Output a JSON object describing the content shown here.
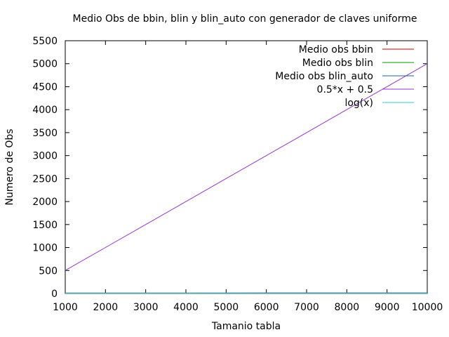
{
  "chart_data": {
    "type": "line",
    "title": "Medio Obs de bbin, blin y blin_auto con generador de claves uniforme",
    "xlabel": "Tamanio tabla",
    "ylabel": "Numero de Obs",
    "xlim": [
      1000,
      10000
    ],
    "ylim": [
      0,
      5500
    ],
    "xticks": [
      1000,
      2000,
      3000,
      4000,
      5000,
      6000,
      7000,
      8000,
      9000,
      10000
    ],
    "yticks": [
      0,
      500,
      1000,
      1500,
      2000,
      2500,
      3000,
      3500,
      4000,
      4500,
      5000,
      5500
    ],
    "grid": false,
    "legend_position": "top-right",
    "series": [
      {
        "name": "Medio obs bbin",
        "color": "#cc0000",
        "x": [
          1000,
          2000,
          3000,
          4000,
          5000,
          6000,
          7000,
          8000,
          9000,
          10000
        ],
        "y": [
          10,
          11,
          12,
          12,
          12,
          13,
          13,
          13,
          13,
          13
        ]
      },
      {
        "name": "Medio obs blin",
        "color": "#009900",
        "x": [
          1000,
          2000,
          3000,
          4000,
          5000,
          6000,
          7000,
          8000,
          9000,
          10000
        ],
        "y": [
          2,
          2,
          2,
          2,
          2,
          2,
          2,
          2,
          2,
          2
        ]
      },
      {
        "name": "Medio obs blin_auto",
        "color": "#1f5fa8",
        "x": [
          1000,
          2000,
          3000,
          4000,
          5000,
          6000,
          7000,
          8000,
          9000,
          10000
        ],
        "y": [
          2,
          2,
          2,
          2,
          2,
          2,
          2,
          2,
          2,
          2
        ]
      },
      {
        "name": "0.5*x + 0.5",
        "color": "#9933cc",
        "x": [
          1000,
          2000,
          3000,
          4000,
          5000,
          6000,
          7000,
          8000,
          9000,
          10000
        ],
        "y": [
          500.5,
          1000.5,
          1500.5,
          2000.5,
          2500.5,
          3000.5,
          3500.5,
          4000.5,
          4500.5,
          5000.5
        ]
      },
      {
        "name": "log(x)",
        "color": "#33cccc",
        "x": [
          1000,
          2000,
          3000,
          4000,
          5000,
          6000,
          7000,
          8000,
          9000,
          10000
        ],
        "y": [
          6.9,
          7.6,
          8.0,
          8.3,
          8.5,
          8.7,
          8.9,
          9.0,
          9.1,
          9.2
        ]
      }
    ]
  }
}
